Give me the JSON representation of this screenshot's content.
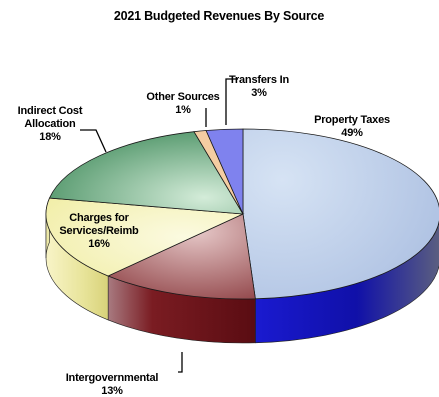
{
  "chart_data": {
    "type": "pie",
    "title": "2021 Budgeted Revenues By Source",
    "style": "3d-exploded-none",
    "slices": [
      {
        "label_lines": [
          "Property Taxes",
          "49%"
        ],
        "value": 49,
        "top_color": "#b9cbe6",
        "side_color": "#1515b8"
      },
      {
        "label_lines": [
          "Intergovernmental",
          "13%"
        ],
        "value": 13,
        "top_color": "#d2aeb0",
        "side_color": "#6e1418"
      },
      {
        "label_lines": [
          "Charges for",
          "Services/Reimb",
          "16%"
        ],
        "value": 16,
        "top_color": "#f5f2b8",
        "side_color": "#e7e39a"
      },
      {
        "label_lines": [
          "Indirect Cost",
          "Allocation",
          "18%"
        ],
        "value": 18,
        "top_color": "#a8d0b4",
        "side_color": "#2e6e48"
      },
      {
        "label_lines": [
          "Other Sources",
          "1%"
        ],
        "value": 1,
        "top_color": "#f4cda2",
        "side_color": "#b07840"
      },
      {
        "label_lines": [
          "Transfers In",
          "3%"
        ],
        "value": 3,
        "top_color": "#7f82ee",
        "side_color": "#3a3dc0"
      }
    ]
  }
}
